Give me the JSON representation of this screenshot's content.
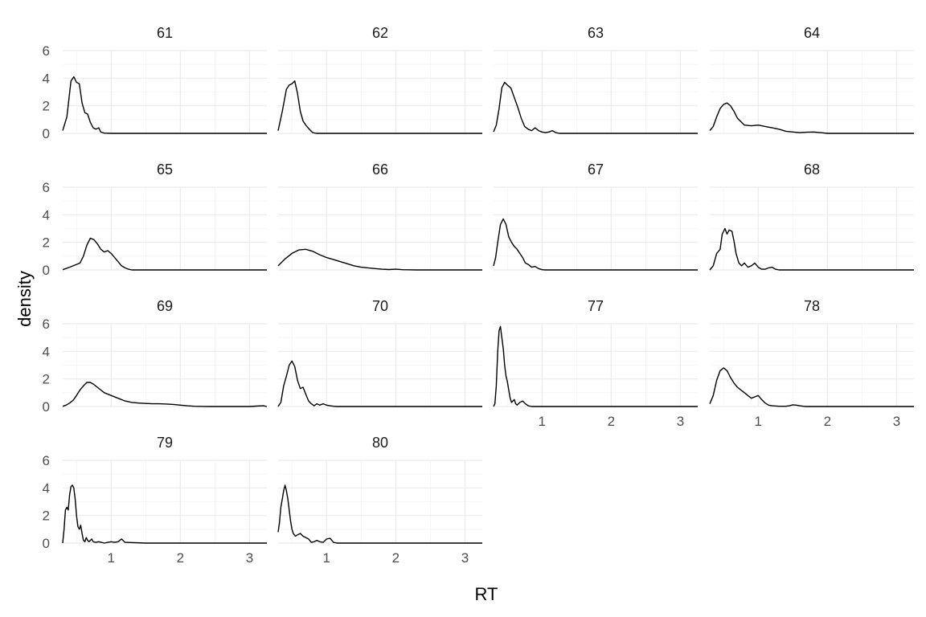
{
  "chart_data": {
    "type": "line",
    "chart_kind": "density (faceted small multiples)",
    "xlabel": "RT",
    "ylabel": "density",
    "xlim": [
      0.3,
      3.25
    ],
    "ylim": [
      0,
      6
    ],
    "x_ticks": [
      1,
      2,
      3
    ],
    "y_ticks": [
      0,
      2,
      4,
      6
    ],
    "grid": true,
    "line_color": "#000000",
    "panels": [
      {
        "label": "61",
        "x": [
          0.3,
          0.36,
          0.42,
          0.46,
          0.5,
          0.54,
          0.58,
          0.62,
          0.66,
          0.7,
          0.74,
          0.78,
          0.82,
          0.85,
          0.9,
          1.0,
          1.5,
          2.0,
          2.5,
          3.0,
          3.25
        ],
        "y": [
          0.2,
          1.2,
          3.8,
          4.1,
          3.7,
          3.6,
          2.2,
          1.5,
          1.4,
          0.8,
          0.4,
          0.3,
          0.4,
          0.1,
          0.02,
          0,
          0,
          0,
          0,
          0,
          0
        ]
      },
      {
        "label": "62",
        "x": [
          0.3,
          0.36,
          0.42,
          0.46,
          0.5,
          0.54,
          0.58,
          0.62,
          0.66,
          0.7,
          0.75,
          0.8,
          0.85,
          1.0,
          1.5,
          2.0,
          2.5,
          3.0,
          3.25
        ],
        "y": [
          0.2,
          1.6,
          3.2,
          3.5,
          3.6,
          3.8,
          2.9,
          1.6,
          0.9,
          0.6,
          0.3,
          0.05,
          0,
          0,
          0,
          0,
          0,
          0,
          0
        ]
      },
      {
        "label": "63",
        "x": [
          0.3,
          0.34,
          0.38,
          0.42,
          0.46,
          0.5,
          0.55,
          0.6,
          0.65,
          0.7,
          0.75,
          0.8,
          0.85,
          0.9,
          0.95,
          1.0,
          1.05,
          1.1,
          1.15,
          1.2,
          1.25,
          1.3,
          1.5,
          2.0,
          2.5,
          3.0,
          3.25
        ],
        "y": [
          0.1,
          0.6,
          1.8,
          3.3,
          3.7,
          3.5,
          3.3,
          2.6,
          1.9,
          1.1,
          0.5,
          0.3,
          0.2,
          0.4,
          0.2,
          0.1,
          0.05,
          0.1,
          0.2,
          0.05,
          0,
          0,
          0,
          0,
          0,
          0,
          0
        ]
      },
      {
        "label": "64",
        "x": [
          0.3,
          0.35,
          0.4,
          0.45,
          0.5,
          0.55,
          0.6,
          0.65,
          0.7,
          0.8,
          0.9,
          1.0,
          1.1,
          1.2,
          1.3,
          1.4,
          1.5,
          1.6,
          1.7,
          1.8,
          1.9,
          2.0,
          2.2,
          2.5,
          3.0,
          3.25
        ],
        "y": [
          0.2,
          0.5,
          1.2,
          1.8,
          2.1,
          2.2,
          2.0,
          1.6,
          1.1,
          0.6,
          0.55,
          0.6,
          0.5,
          0.4,
          0.3,
          0.15,
          0.1,
          0.05,
          0.08,
          0.1,
          0.05,
          0,
          0,
          0,
          0,
          0
        ]
      },
      {
        "label": "65",
        "x": [
          0.3,
          0.4,
          0.5,
          0.55,
          0.6,
          0.65,
          0.7,
          0.75,
          0.8,
          0.85,
          0.9,
          0.95,
          1.0,
          1.05,
          1.1,
          1.15,
          1.2,
          1.25,
          1.3,
          1.5,
          2.0,
          2.5,
          3.0,
          3.25
        ],
        "y": [
          0.02,
          0.2,
          0.4,
          0.5,
          1.0,
          1.8,
          2.3,
          2.2,
          1.9,
          1.5,
          1.3,
          1.4,
          1.2,
          0.9,
          0.6,
          0.3,
          0.15,
          0.05,
          0,
          0,
          0,
          0,
          0,
          0
        ]
      },
      {
        "label": "66",
        "x": [
          0.3,
          0.4,
          0.5,
          0.6,
          0.7,
          0.8,
          0.9,
          1.0,
          1.1,
          1.2,
          1.3,
          1.4,
          1.5,
          1.6,
          1.7,
          1.8,
          1.9,
          2.0,
          2.1,
          2.3,
          2.5,
          3.0,
          3.25
        ],
        "y": [
          0.3,
          0.8,
          1.2,
          1.45,
          1.5,
          1.35,
          1.1,
          0.9,
          0.75,
          0.6,
          0.45,
          0.3,
          0.2,
          0.15,
          0.1,
          0.05,
          0.03,
          0.05,
          0.02,
          0,
          0,
          0,
          0
        ]
      },
      {
        "label": "67",
        "x": [
          0.3,
          0.33,
          0.36,
          0.4,
          0.44,
          0.48,
          0.52,
          0.56,
          0.6,
          0.64,
          0.68,
          0.72,
          0.76,
          0.8,
          0.85,
          0.9,
          0.95,
          1.0,
          1.05,
          1.1,
          1.3,
          1.5,
          2.0,
          2.5,
          3.0,
          3.25
        ],
        "y": [
          0.3,
          0.9,
          2.0,
          3.3,
          3.7,
          3.3,
          2.4,
          2.0,
          1.7,
          1.5,
          1.2,
          0.9,
          0.5,
          0.4,
          0.2,
          0.25,
          0.1,
          0.02,
          0,
          0,
          0,
          0,
          0,
          0,
          0,
          0
        ]
      },
      {
        "label": "68",
        "x": [
          0.3,
          0.35,
          0.4,
          0.45,
          0.48,
          0.52,
          0.55,
          0.58,
          0.62,
          0.65,
          0.68,
          0.72,
          0.76,
          0.8,
          0.85,
          0.9,
          0.95,
          1.0,
          1.05,
          1.1,
          1.15,
          1.2,
          1.25,
          1.3,
          1.35,
          1.4,
          1.5,
          2.0,
          2.5,
          3.0,
          3.25
        ],
        "y": [
          0,
          0.3,
          1.2,
          1.5,
          2.6,
          3.0,
          2.6,
          2.9,
          2.8,
          2.1,
          1.2,
          0.5,
          0.3,
          0.5,
          0.2,
          0.3,
          0.5,
          0.2,
          0.05,
          0.05,
          0.15,
          0.2,
          0.05,
          0,
          0,
          0,
          0,
          0,
          0,
          0,
          0
        ]
      },
      {
        "label": "69",
        "x": [
          0.3,
          0.35,
          0.4,
          0.45,
          0.5,
          0.55,
          0.6,
          0.65,
          0.7,
          0.75,
          0.8,
          0.85,
          0.9,
          1.0,
          1.1,
          1.2,
          1.3,
          1.4,
          1.5,
          1.6,
          1.7,
          1.8,
          1.9,
          2.0,
          2.1,
          2.2,
          2.4,
          2.6,
          2.8,
          3.0,
          3.1,
          3.2,
          3.25
        ],
        "y": [
          0.02,
          0.1,
          0.25,
          0.45,
          0.8,
          1.2,
          1.5,
          1.75,
          1.75,
          1.6,
          1.4,
          1.2,
          1.0,
          0.8,
          0.6,
          0.4,
          0.3,
          0.25,
          0.22,
          0.2,
          0.2,
          0.18,
          0.15,
          0.1,
          0.05,
          0.02,
          0,
          0,
          0,
          0,
          0.03,
          0.05,
          0
        ]
      },
      {
        "label": "70",
        "x": [
          0.3,
          0.34,
          0.38,
          0.42,
          0.46,
          0.5,
          0.54,
          0.58,
          0.62,
          0.66,
          0.7,
          0.74,
          0.78,
          0.82,
          0.86,
          0.9,
          0.95,
          1.0,
          1.05,
          1.1,
          1.15,
          1.2,
          1.3,
          1.5,
          2.0,
          2.5,
          3.0,
          3.25
        ],
        "y": [
          0,
          0.3,
          1.5,
          2.2,
          3.0,
          3.3,
          2.9,
          1.9,
          1.3,
          1.4,
          0.9,
          0.4,
          0.2,
          0.05,
          0.2,
          0.1,
          0.2,
          0.1,
          0.05,
          0.02,
          0,
          0,
          0,
          0,
          0,
          0,
          0,
          0
        ]
      },
      {
        "label": "77",
        "x": [
          0.3,
          0.32,
          0.34,
          0.36,
          0.38,
          0.4,
          0.42,
          0.44,
          0.46,
          0.48,
          0.5,
          0.52,
          0.54,
          0.56,
          0.58,
          0.6,
          0.62,
          0.64,
          0.68,
          0.72,
          0.76,
          0.8,
          0.85,
          0.9,
          1.0,
          1.5,
          2.0,
          2.5,
          3.0,
          3.25
        ],
        "y": [
          0,
          0.2,
          1.5,
          4.0,
          5.5,
          5.8,
          5.0,
          4.2,
          3.0,
          2.2,
          1.8,
          1.2,
          0.6,
          0.3,
          0.4,
          0.5,
          0.2,
          0.1,
          0.3,
          0.4,
          0.2,
          0.05,
          0,
          0,
          0,
          0,
          0,
          0,
          0,
          0
        ]
      },
      {
        "label": "78",
        "x": [
          0.3,
          0.35,
          0.4,
          0.45,
          0.5,
          0.55,
          0.6,
          0.65,
          0.7,
          0.75,
          0.8,
          0.85,
          0.9,
          0.95,
          1.0,
          1.05,
          1.1,
          1.15,
          1.2,
          1.3,
          1.4,
          1.45,
          1.5,
          1.55,
          1.6,
          1.65,
          1.7,
          2.0,
          2.5,
          3.0,
          3.25
        ],
        "y": [
          0.2,
          0.8,
          1.9,
          2.6,
          2.8,
          2.6,
          2.1,
          1.7,
          1.4,
          1.2,
          1.0,
          0.8,
          0.6,
          0.7,
          0.8,
          0.5,
          0.25,
          0.1,
          0.05,
          0.02,
          0.02,
          0.05,
          0.12,
          0.1,
          0.05,
          0.02,
          0,
          0,
          0,
          0,
          0
        ]
      },
      {
        "label": "79",
        "x": [
          0.3,
          0.32,
          0.34,
          0.36,
          0.38,
          0.4,
          0.42,
          0.44,
          0.46,
          0.48,
          0.5,
          0.52,
          0.54,
          0.56,
          0.58,
          0.6,
          0.62,
          0.64,
          0.66,
          0.68,
          0.7,
          0.72,
          0.74,
          0.78,
          0.82,
          0.86,
          0.9,
          0.95,
          1.0,
          1.05,
          1.1,
          1.15,
          1.2,
          1.5,
          2.0,
          2.5,
          3.0,
          3.25
        ],
        "y": [
          0,
          1.0,
          2.4,
          2.6,
          2.4,
          3.5,
          4.1,
          4.2,
          4.0,
          3.2,
          2.0,
          1.2,
          1.0,
          1.3,
          0.7,
          0.2,
          0.1,
          0.4,
          0.2,
          0.1,
          0.2,
          0.3,
          0.1,
          0.05,
          0.1,
          0.05,
          0,
          0.05,
          0.1,
          0.05,
          0.1,
          0.3,
          0.05,
          0,
          0,
          0,
          0,
          0
        ]
      },
      {
        "label": "80",
        "x": [
          0.3,
          0.32,
          0.34,
          0.36,
          0.38,
          0.4,
          0.42,
          0.44,
          0.46,
          0.48,
          0.5,
          0.52,
          0.55,
          0.58,
          0.62,
          0.66,
          0.7,
          0.74,
          0.78,
          0.82,
          0.86,
          0.9,
          0.95,
          1.0,
          1.05,
          1.1,
          1.15,
          1.2,
          1.5,
          2.0,
          2.5,
          3.0,
          3.25
        ],
        "y": [
          0.8,
          1.5,
          2.6,
          3.2,
          3.8,
          4.2,
          3.8,
          3.2,
          2.4,
          1.6,
          1.0,
          0.7,
          0.5,
          0.6,
          0.7,
          0.5,
          0.4,
          0.3,
          0.05,
          0.1,
          0.2,
          0.1,
          0.05,
          0.3,
          0.35,
          0.05,
          0,
          0,
          0,
          0,
          0,
          0,
          0
        ]
      }
    ]
  }
}
